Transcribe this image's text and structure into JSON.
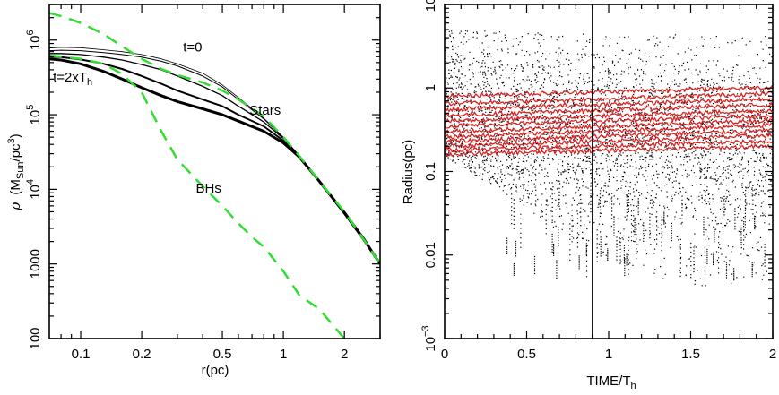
{
  "chart_data": [
    {
      "type": "line",
      "panel": "left",
      "title": "",
      "xlabel": "r(pc)",
      "ylabel": "ρ (M_Sun/pc^3)",
      "xscale": "log",
      "yscale": "log",
      "xlim": [
        0.07,
        3.0
      ],
      "ylim": [
        100,
        3000000
      ],
      "xticks": [
        {
          "value": 0.1,
          "label": "0.1"
        },
        {
          "value": 0.2,
          "label": "0.2"
        },
        {
          "value": 0.5,
          "label": "0.5"
        },
        {
          "value": 1,
          "label": "1"
        },
        {
          "value": 2,
          "label": "2"
        }
      ],
      "yticks": [
        {
          "value": 100,
          "label": "100"
        },
        {
          "value": 1000,
          "label": "1000"
        },
        {
          "value": 10000,
          "label": "10",
          "exp": "4"
        },
        {
          "value": 100000,
          "label": "10",
          "exp": "5"
        },
        {
          "value": 1000000,
          "label": "10",
          "exp": "6"
        }
      ],
      "annotations": [
        {
          "text": "t=0",
          "x": 0.32,
          "y": 700000
        },
        {
          "text": "t=2xT",
          "sub": "h",
          "x": 0.073,
          "y": 280000
        },
        {
          "text": "Stars",
          "x": 0.68,
          "y": 100000
        },
        {
          "text": "BHs",
          "x": 0.37,
          "y": 9000
        }
      ],
      "series": [
        {
          "name": "Stars t=0",
          "group": "stars",
          "weight": 0.8,
          "color": "#000000",
          "x": [
            0.07,
            0.08,
            0.1,
            0.13,
            0.16,
            0.2,
            0.25,
            0.3,
            0.4,
            0.5,
            0.6,
            0.8,
            1.0,
            1.2,
            1.5,
            2.0,
            2.5,
            3.0
          ],
          "y": [
            780000,
            800000,
            790000,
            740000,
            700000,
            640000,
            560000,
            480000,
            360000,
            250000,
            170000,
            90000,
            50000,
            28000,
            13000,
            5000,
            2200,
            1000
          ]
        },
        {
          "name": "Stars t1",
          "group": "stars",
          "weight": 1.0,
          "color": "#000000",
          "x": [
            0.07,
            0.08,
            0.1,
            0.13,
            0.16,
            0.2,
            0.25,
            0.3,
            0.4,
            0.5,
            0.6,
            0.8,
            1.0,
            1.2,
            1.5,
            2.0,
            2.5,
            3.0
          ],
          "y": [
            720000,
            730000,
            720000,
            680000,
            640000,
            590000,
            520000,
            450000,
            330000,
            235000,
            160000,
            88000,
            49000,
            28000,
            13000,
            5000,
            2200,
            1000
          ]
        },
        {
          "name": "Stars t2",
          "group": "stars",
          "weight": 1.3,
          "color": "#000000",
          "x": [
            0.07,
            0.08,
            0.1,
            0.13,
            0.16,
            0.2,
            0.25,
            0.3,
            0.4,
            0.5,
            0.6,
            0.8,
            1.0,
            1.2,
            1.5,
            2.0,
            2.5,
            3.0
          ],
          "y": [
            660000,
            660000,
            640000,
            590000,
            540000,
            470000,
            400000,
            330000,
            240000,
            180000,
            130000,
            80000,
            48000,
            28000,
            13000,
            5000,
            2200,
            1000
          ]
        },
        {
          "name": "Stars t3",
          "group": "stars",
          "weight": 2.0,
          "color": "#000000",
          "x": [
            0.07,
            0.08,
            0.1,
            0.13,
            0.16,
            0.2,
            0.25,
            0.3,
            0.4,
            0.5,
            0.6,
            0.8,
            1.0,
            1.2,
            1.5,
            2.0,
            2.5,
            3.0
          ],
          "y": [
            600000,
            590000,
            550000,
            480000,
            410000,
            330000,
            260000,
            210000,
            160000,
            130000,
            100000,
            70000,
            45000,
            27000,
            13000,
            5000,
            2200,
            1000
          ]
        },
        {
          "name": "Stars t=2xTh",
          "group": "stars",
          "weight": 3.0,
          "color": "#000000",
          "x": [
            0.07,
            0.08,
            0.1,
            0.13,
            0.16,
            0.2,
            0.25,
            0.3,
            0.4,
            0.5,
            0.6,
            0.8,
            1.0,
            1.2,
            1.5,
            2.0,
            2.5,
            3.0
          ],
          "y": [
            560000,
            540000,
            480000,
            380000,
            300000,
            230000,
            180000,
            150000,
            120000,
            100000,
            82000,
            60000,
            42000,
            27000,
            13000,
            4800,
            2100,
            1000
          ]
        },
        {
          "name": "BHs t=0",
          "group": "bhs",
          "weight": 2.5,
          "color": "#33dd33",
          "x": [
            0.07,
            0.08,
            0.1,
            0.13,
            0.16,
            0.2,
            0.25,
            0.3,
            0.4,
            0.5,
            0.6,
            0.8,
            1.0,
            1.2,
            1.5,
            2.0,
            2.5,
            3.0
          ],
          "y": [
            2300000,
            2100000,
            1700000,
            1200000,
            820000,
            560000,
            410000,
            340000,
            270000,
            210000,
            160000,
            95000,
            50000,
            28000,
            13000,
            5000,
            2100,
            1000
          ]
        },
        {
          "name": "BHs t=2xTh",
          "group": "bhs",
          "weight": 2.5,
          "color": "#33dd33",
          "x": [
            0.07,
            0.08,
            0.1,
            0.13,
            0.16,
            0.2,
            0.25,
            0.3,
            0.4,
            0.5,
            0.6,
            0.7,
            0.8,
            1.0,
            1.2,
            1.5,
            1.8,
            2.0
          ],
          "y": [
            620000,
            600000,
            560000,
            480000,
            350000,
            200000,
            60000,
            25000,
            11000,
            6000,
            3500,
            2300,
            1700,
            800,
            380,
            250,
            140,
            100
          ]
        }
      ]
    },
    {
      "type": "scatter",
      "panel": "right",
      "title": "",
      "xlabel": "TIME/T",
      "xlabel_sub": "h",
      "ylabel": "Radius(pc)",
      "xscale": "linear",
      "yscale": "log",
      "xlim": [
        0,
        2
      ],
      "ylim": [
        0.001,
        10
      ],
      "vline": 0.9,
      "xticks": [
        {
          "value": 0,
          "label": "0"
        },
        {
          "value": 0.5,
          "label": "0.5"
        },
        {
          "value": 1,
          "label": "1"
        },
        {
          "value": 1.5,
          "label": "1.5"
        },
        {
          "value": 2,
          "label": "2"
        }
      ],
      "yticks": [
        {
          "value": 10,
          "label": "10"
        },
        {
          "value": 1,
          "label": "1"
        },
        {
          "value": 0.1,
          "label": "0.1"
        },
        {
          "value": 0.01,
          "label": "0.01"
        },
        {
          "value": 0.001,
          "label": "10",
          "exp": "−3"
        }
      ],
      "red_series": {
        "name": "Lagrangian radii",
        "color": "#dd2222",
        "start_radii": [
          0.16,
          0.18,
          0.2,
          0.23,
          0.26,
          0.3,
          0.35,
          0.4,
          0.47,
          0.55,
          0.65,
          0.8
        ],
        "end_radii": [
          0.2,
          0.23,
          0.27,
          0.31,
          0.36,
          0.41,
          0.47,
          0.54,
          0.63,
          0.74,
          0.86,
          1.02
        ]
      },
      "black_points": {
        "name": "Black hole radii",
        "color": "#000000",
        "time_range": [
          0,
          2
        ],
        "upper_envelope": [
          [
            0,
            5
          ],
          [
            1,
            4.5
          ],
          [
            2,
            4.3
          ]
        ],
        "lower_envelope": [
          [
            0,
            0.15
          ],
          [
            0.4,
            0.05
          ],
          [
            0.9,
            0.01
          ],
          [
            1.4,
            0.004
          ],
          [
            2,
            0.005
          ]
        ]
      }
    }
  ]
}
